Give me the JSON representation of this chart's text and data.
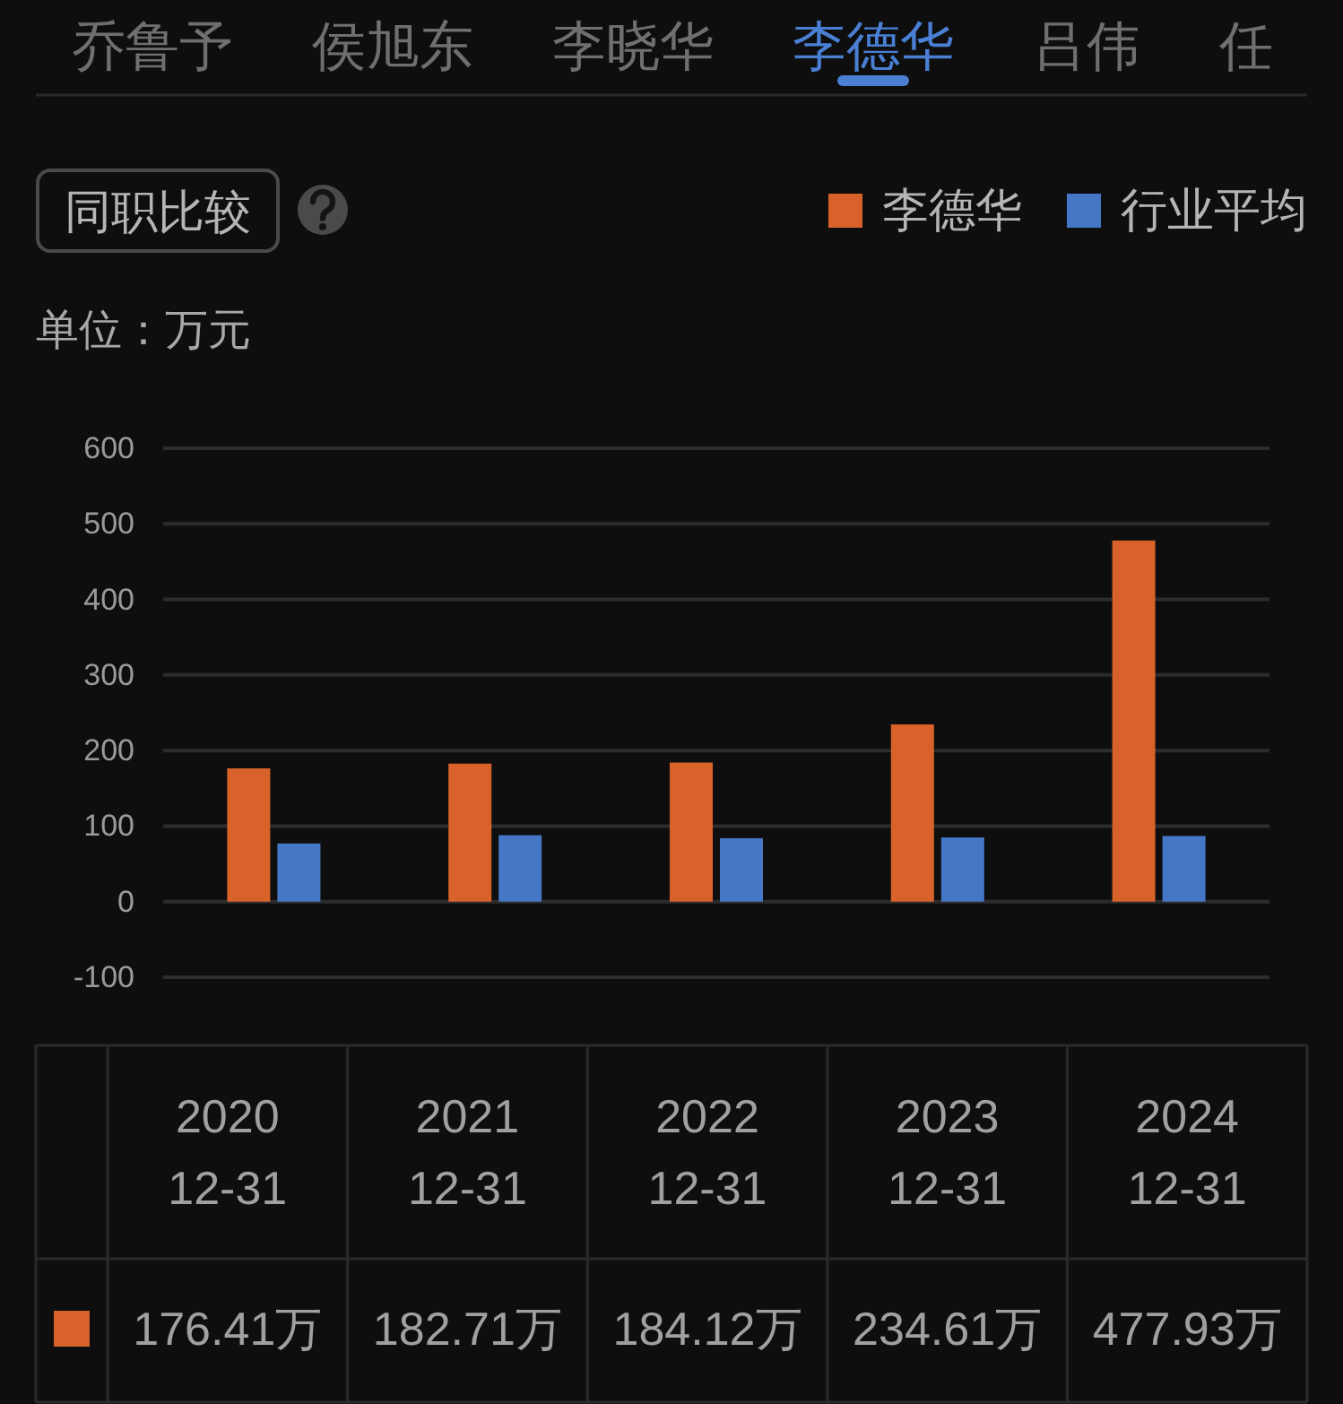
{
  "chart_data": {
    "type": "bar",
    "subtitle": "单位：万元",
    "annotations": [
      "乔鲁予",
      "侯旭东",
      "李晓华",
      "李德华",
      "吕伟",
      "任",
      "同职比较"
    ],
    "categories": [
      "2020\n12-31",
      "2021\n12-31",
      "2022\n12-31",
      "2023\n12-31",
      "2024\n12-31"
    ],
    "series": [
      {
        "name": "李德华",
        "color": "#d9622b",
        "values": [
          176.41,
          182.71,
          184.12,
          234.61,
          477.93
        ],
        "value_labels": [
          "176.41万",
          "182.71万",
          "184.12万",
          "234.61万",
          "477.93万"
        ]
      },
      {
        "name": "行业平均",
        "color": "#4577c6",
        "values": [
          77,
          88,
          84,
          85,
          87
        ]
      }
    ],
    "ylim": [
      -100,
      600
    ],
    "yticks": [
      -100,
      0,
      100,
      200,
      300,
      400,
      500,
      600
    ],
    "grid": "y",
    "legend": "top right"
  }
}
